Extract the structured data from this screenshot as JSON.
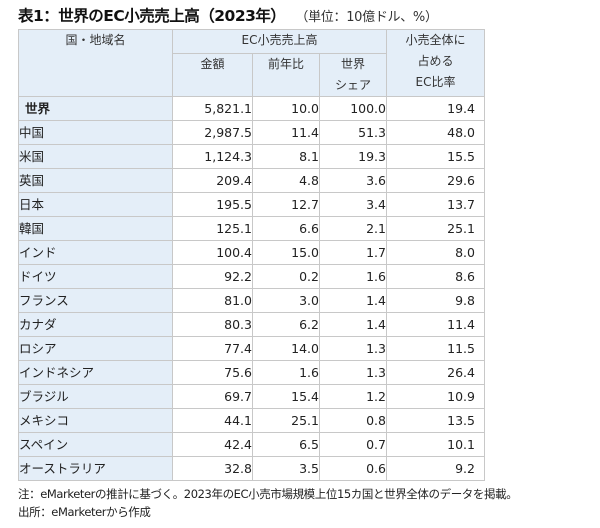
{
  "title": {
    "main": "表1：世界のEC小売売上高（2023年）",
    "unit": "（単位：10億ドル、%）"
  },
  "table": {
    "headers": {
      "name": "国・地域名",
      "ec_group": "EC小売売上高",
      "amount": "金額",
      "yoy": "前年比",
      "share_line1": "世界",
      "share_line2": "シェア",
      "ratio_line1": "小売全体に",
      "ratio_line2": "占める",
      "ratio_line3": "EC比率"
    },
    "rows": [
      {
        "name": "世界",
        "amount": "5,821.1",
        "yoy": "10.0",
        "share": "100.0",
        "ratio": "19.4"
      },
      {
        "name": "中国",
        "amount": "2,987.5",
        "yoy": "11.4",
        "share": "51.3",
        "ratio": "48.0"
      },
      {
        "name": "米国",
        "amount": "1,124.3",
        "yoy": "8.1",
        "share": "19.3",
        "ratio": "15.5"
      },
      {
        "name": "英国",
        "amount": "209.4",
        "yoy": "4.8",
        "share": "3.6",
        "ratio": "29.6"
      },
      {
        "name": "日本",
        "amount": "195.5",
        "yoy": "12.7",
        "share": "3.4",
        "ratio": "13.7"
      },
      {
        "name": "韓国",
        "amount": "125.1",
        "yoy": "6.6",
        "share": "2.1",
        "ratio": "25.1"
      },
      {
        "name": "インド",
        "amount": "100.4",
        "yoy": "15.0",
        "share": "1.7",
        "ratio": "8.0"
      },
      {
        "name": "ドイツ",
        "amount": "92.2",
        "yoy": "0.2",
        "share": "1.6",
        "ratio": "8.6"
      },
      {
        "name": "フランス",
        "amount": "81.0",
        "yoy": "3.0",
        "share": "1.4",
        "ratio": "9.8"
      },
      {
        "name": "カナダ",
        "amount": "80.3",
        "yoy": "6.2",
        "share": "1.4",
        "ratio": "11.4"
      },
      {
        "name": "ロシア",
        "amount": "77.4",
        "yoy": "14.0",
        "share": "1.3",
        "ratio": "11.5"
      },
      {
        "name": "インドネシア",
        "amount": "75.6",
        "yoy": "1.6",
        "share": "1.3",
        "ratio": "26.4"
      },
      {
        "name": "ブラジル",
        "amount": "69.7",
        "yoy": "15.4",
        "share": "1.2",
        "ratio": "10.9"
      },
      {
        "name": "メキシコ",
        "amount": "44.1",
        "yoy": "25.1",
        "share": "0.8",
        "ratio": "13.5"
      },
      {
        "name": "スペイン",
        "amount": "42.4",
        "yoy": "6.5",
        "share": "0.7",
        "ratio": "10.1"
      },
      {
        "name": "オーストラリア",
        "amount": "32.8",
        "yoy": "3.5",
        "share": "0.6",
        "ratio": "9.2"
      }
    ]
  },
  "notes": {
    "note": "注：eMarketerの推計に基づく。2023年のEC小売市場規模上位15カ国と世界全体のデータを掲載。",
    "source": "出所：eMarketerから作成"
  },
  "colors": {
    "header_bg": "#e4eef8",
    "border": "#c8c8c8",
    "cell_bg": "#ffffff"
  }
}
